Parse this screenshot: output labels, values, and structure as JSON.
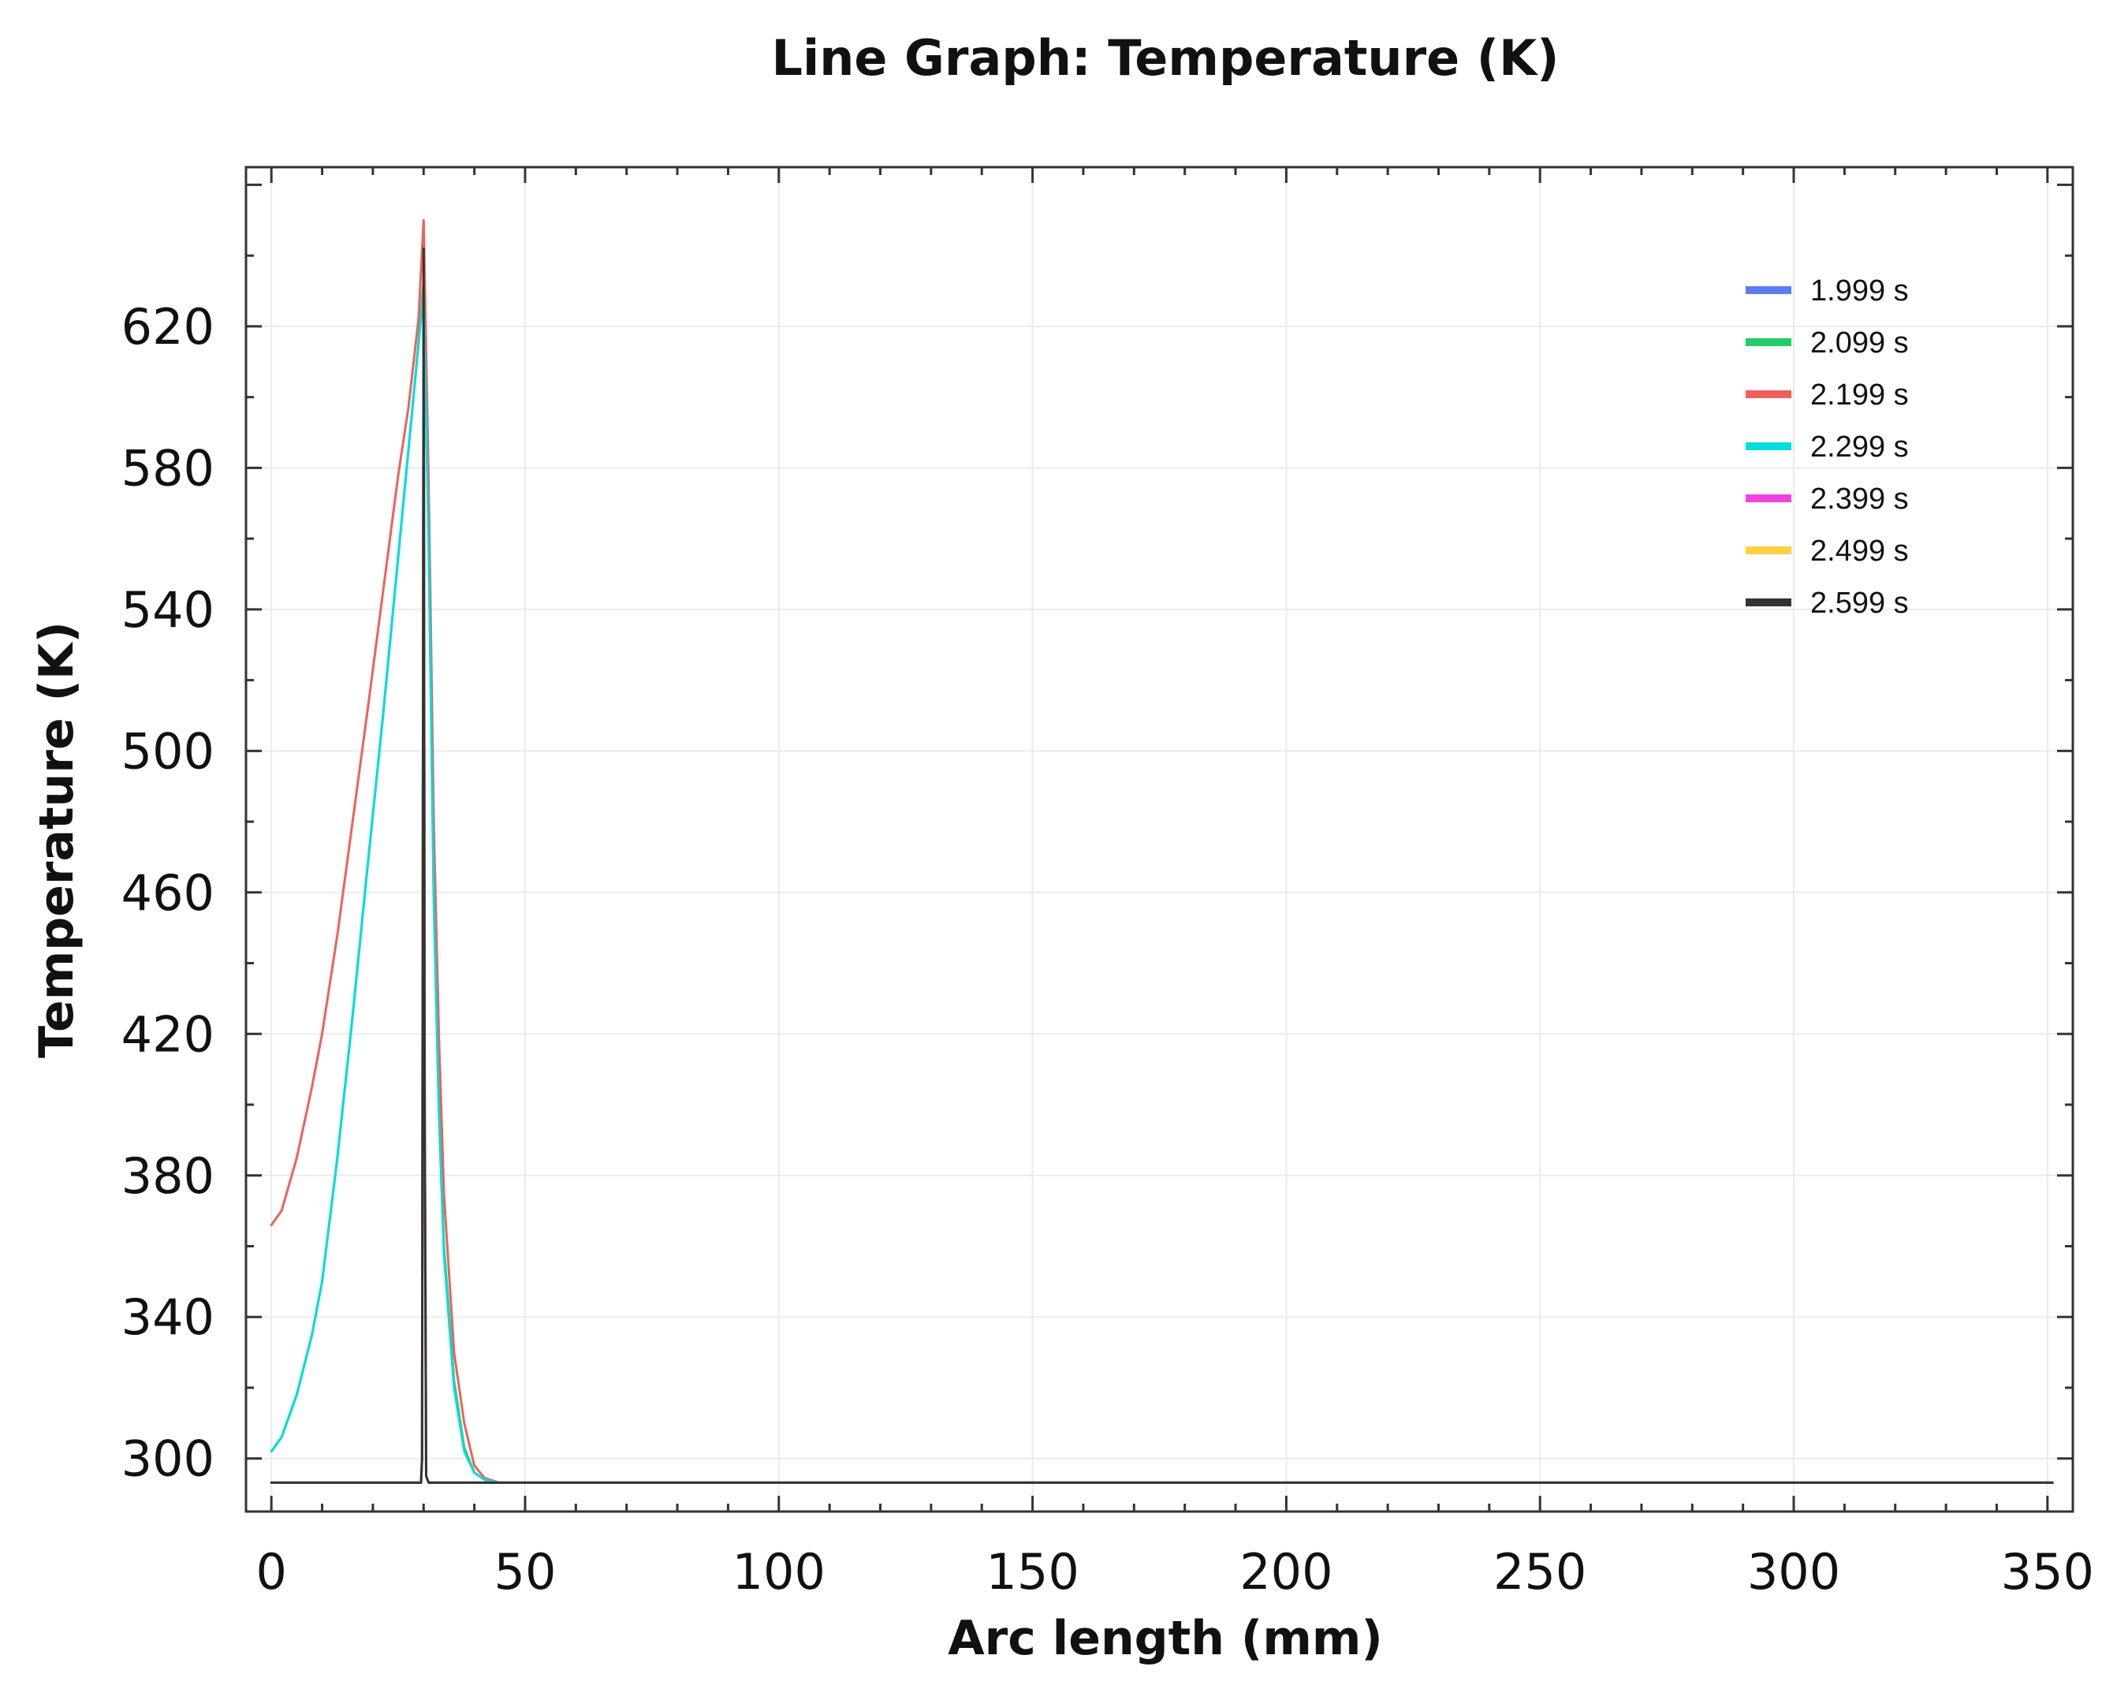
{
  "chart_data": {
    "type": "line",
    "title": "Line Graph: Temperature (K)",
    "xlabel": "Arc length (mm)",
    "ylabel": "Temperature (K)",
    "xlim": [
      -5,
      355
    ],
    "ylim": [
      285,
      665
    ],
    "xticks": [
      0,
      50,
      100,
      150,
      200,
      250,
      300,
      350
    ],
    "yticks": [
      300,
      340,
      380,
      420,
      460,
      500,
      540,
      580,
      620
    ],
    "grid": true,
    "legend_position": "top-right",
    "series": [
      {
        "name": "1.999 s",
        "color": "#5b7cf0",
        "x": [
          0,
          29.5,
          29.7,
          30.0,
          30.2,
          30.5,
          31.0,
          351
        ],
        "y": [
          293.15,
          293.15,
          300,
          640,
          400,
          295,
          293.15,
          293.15
        ]
      },
      {
        "name": "2.099 s",
        "color": "#22cc66",
        "x": [
          0,
          2,
          5,
          8,
          10,
          13,
          16,
          19,
          22,
          25,
          27,
          29,
          30,
          31,
          32,
          33,
          34,
          36,
          38,
          40,
          42,
          45,
          48,
          351
        ],
        "y": [
          302,
          306,
          318,
          335,
          350,
          385,
          425,
          468,
          510,
          555,
          585,
          615,
          633,
          560,
          460,
          400,
          360,
          322,
          303,
          296,
          294,
          293.15,
          293.15,
          293.15
        ]
      },
      {
        "name": "2.199 s",
        "color": "#f0605a",
        "x": [
          0,
          2,
          5,
          8,
          10,
          13,
          16,
          19,
          22,
          25,
          27,
          29,
          30,
          31,
          32,
          33,
          34,
          36,
          38,
          40,
          42,
          45,
          48,
          351
        ],
        "y": [
          366,
          370,
          385,
          405,
          420,
          448,
          480,
          512,
          545,
          578,
          597,
          622,
          650,
          575,
          480,
          420,
          375,
          330,
          310,
          298,
          294.5,
          293.15,
          293.15,
          293.15
        ]
      },
      {
        "name": "2.299 s",
        "color": "#00dddd",
        "x": [
          0,
          2,
          5,
          8,
          10,
          13,
          16,
          19,
          22,
          25,
          27,
          29,
          30,
          31,
          32,
          33,
          34,
          36,
          38,
          40,
          42,
          45,
          48,
          351
        ],
        "y": [
          302,
          306,
          318,
          335,
          350,
          385,
          425,
          468,
          510,
          555,
          585,
          615,
          630,
          558,
          458,
          398,
          358,
          320,
          302,
          296,
          294,
          293.15,
          293.15,
          293.15
        ]
      },
      {
        "name": "2.399 s",
        "color": "#ee44dd",
        "x": [
          0,
          29.5,
          29.7,
          30.0,
          30.2,
          30.5,
          31.0,
          351
        ],
        "y": [
          293.15,
          293.15,
          300,
          638,
          400,
          295,
          293.15,
          293.15
        ]
      },
      {
        "name": "2.499 s",
        "color": "#ffd040",
        "x": [
          0,
          29.5,
          29.7,
          30.0,
          30.2,
          30.5,
          31.0,
          351
        ],
        "y": [
          293.15,
          293.15,
          300,
          638,
          400,
          295,
          293.15,
          293.15
        ]
      },
      {
        "name": "2.599 s",
        "color": "#333333",
        "x": [
          0,
          29.5,
          29.7,
          30.0,
          30.2,
          30.5,
          31.0,
          351
        ],
        "y": [
          293.15,
          293.15,
          300,
          642,
          400,
          295,
          293.15,
          293.15
        ]
      }
    ]
  }
}
